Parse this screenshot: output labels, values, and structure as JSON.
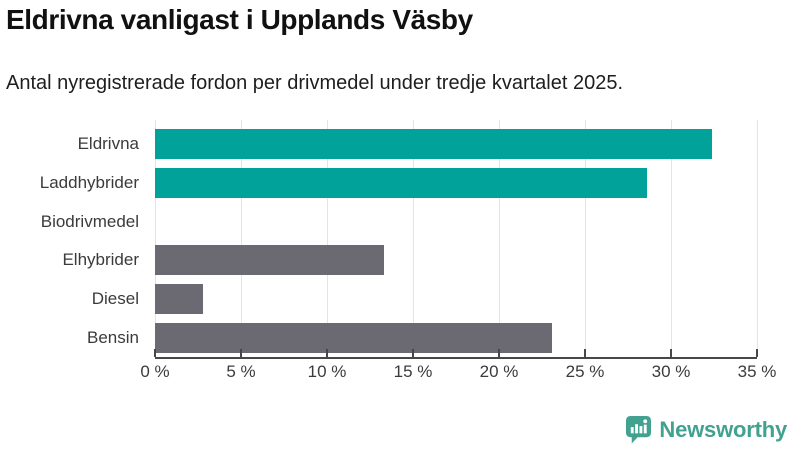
{
  "header": {
    "title": "Eldrivna vanligast i Upplands Väsby",
    "subtitle": "Antal nyregistrerade fordon per drivmedel under tredje kvartalet 2025."
  },
  "chart_data": {
    "type": "bar",
    "orientation": "horizontal",
    "title": "Eldrivna vanligast i Upplands Väsby",
    "subtitle": "Antal nyregistrerade fordon per drivmedel under tredje kvartalet 2025.",
    "categories": [
      "Eldrivna",
      "Laddhybrider",
      "Biodrivmedel",
      "Elhybrider",
      "Diesel",
      "Bensin"
    ],
    "values": [
      32.4,
      28.6,
      0,
      13.3,
      2.8,
      23.1
    ],
    "unit": "%",
    "xlabel": "",
    "ylabel": "",
    "xlim": [
      0,
      35
    ],
    "xticks": [
      0,
      5,
      10,
      15,
      20,
      25,
      30,
      35
    ],
    "xtick_labels": [
      "0 %",
      "5 %",
      "10 %",
      "15 %",
      "20 %",
      "25 %",
      "30 %",
      "35 %"
    ],
    "bar_colors": [
      "#00a29a",
      "#00a29a",
      "#6b6971",
      "#6b6971",
      "#6b6971",
      "#6b6971"
    ],
    "grid": true,
    "legend": false
  },
  "branding": {
    "logo_text": "Newsworthy",
    "logo_color": "#42a18f",
    "logo_icon": "newsworthy-speech-bubble-chart-icon"
  },
  "colors": {
    "highlight_bar": "#00a29a",
    "default_bar": "#6b6971",
    "axis": "#474747",
    "gridline": "#e4e4e4",
    "label_text": "#3b3b3b",
    "title_text": "#111111"
  }
}
